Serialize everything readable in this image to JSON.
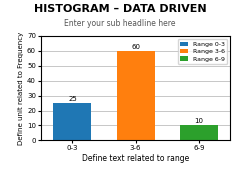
{
  "chart_data": {
    "type": "bar",
    "title": "HISTOGRAM – DATA DRIVEN",
    "subtitle": "Enter your sub headline here",
    "categories": [
      "0-3",
      "3-6",
      "6-9"
    ],
    "series": [
      {
        "name": "Range 0-3",
        "values": [
          25,
          null,
          null
        ]
      },
      {
        "name": "Range 3-6",
        "values": [
          null,
          60,
          null
        ]
      },
      {
        "name": "Range 6-9",
        "values": [
          null,
          null,
          10
        ]
      }
    ],
    "xlabel": "Define text related to range",
    "ylabel": "Define unit related to Frequency",
    "ylim": [
      0,
      70
    ],
    "yticks": [
      0,
      10,
      20,
      30,
      40,
      50,
      60,
      70
    ],
    "grid": true,
    "legend": "upper right",
    "data_labels": true
  }
}
